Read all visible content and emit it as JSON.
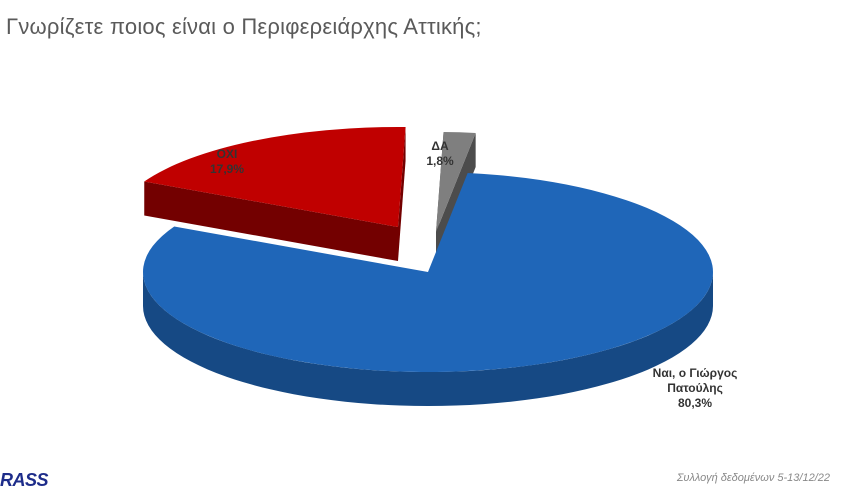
{
  "header": {
    "title": "Γνωρίζετε ποιος είναι ο Περιφερειάρχης Αττικής;"
  },
  "footer": {
    "logo_text": "RASS",
    "source_note": "Συλλογή δεδομένων 5-13/12/22"
  },
  "colors": {
    "yes": "#1f66b8",
    "no": "#c00000",
    "dk": "#7f7f7f"
  },
  "chart_data": {
    "type": "pie",
    "title": "Γνωρίζετε ποιος είναι ο Περιφερειάρχης Αττικής;",
    "slices": [
      {
        "key": "yes",
        "label_line1": "Ναι, ο Γιώργος",
        "label_line2": "Πατούλης",
        "value_text": "80,3%",
        "value": 80.3
      },
      {
        "key": "no",
        "label_line1": "ΟΧΙ",
        "value_text": "17,9%",
        "value": 17.9
      },
      {
        "key": "dk",
        "label_line1": "ΔΑ",
        "value_text": "1,8%",
        "value": 1.8
      }
    ]
  }
}
